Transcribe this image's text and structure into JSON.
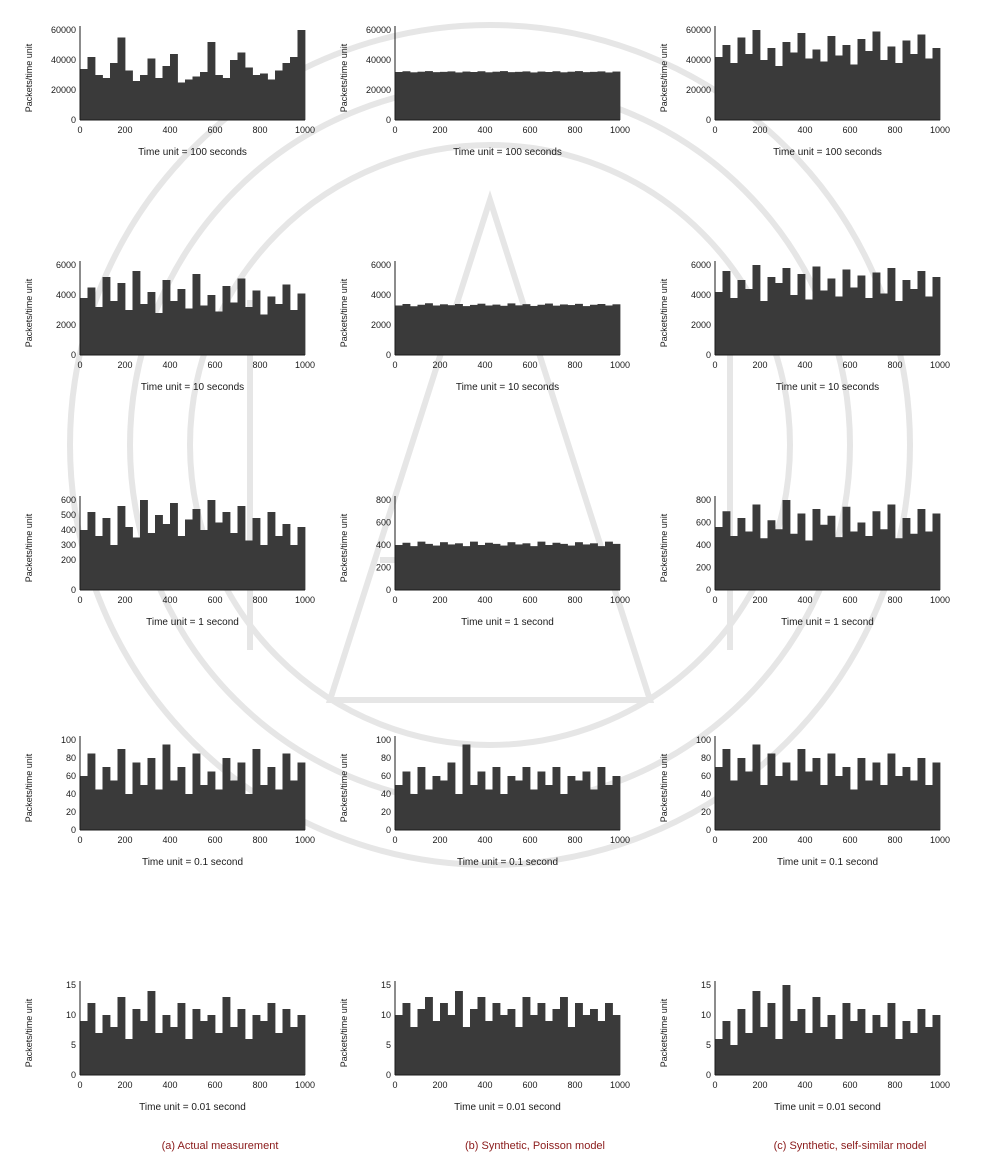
{
  "chart_data": [
    {
      "id": "a1",
      "type": "bar",
      "title": "",
      "xlabel": "Time unit = 100 seconds",
      "ylabel": "Packets/time unit",
      "xlim": [
        0,
        1000
      ],
      "ylim": [
        0,
        60000
      ],
      "xticks": [
        "0",
        "200",
        "400",
        "600",
        "800",
        "1000"
      ],
      "yticks": [
        "0",
        "20000",
        "40000",
        "60000"
      ],
      "values": [
        34000,
        42000,
        30000,
        28000,
        38000,
        55000,
        33000,
        26000,
        30000,
        41000,
        28000,
        36000,
        44000,
        25000,
        27000,
        29000,
        32000,
        52000,
        30000,
        28000,
        40000,
        45000,
        35000,
        30000,
        31000,
        27000,
        33000,
        38000,
        42000,
        60000
      ]
    },
    {
      "id": "b1",
      "type": "bar",
      "title": "",
      "xlabel": "Time unit = 100 seconds",
      "ylabel": "Packets/time unit",
      "xlim": [
        0,
        1000
      ],
      "ylim": [
        0,
        60000
      ],
      "xticks": [
        "0",
        "200",
        "400",
        "600",
        "800",
        "1000"
      ],
      "yticks": [
        "0",
        "20000",
        "40000",
        "60000"
      ],
      "values": [
        32000,
        32500,
        31800,
        32200,
        32600,
        31900,
        32100,
        32400,
        31700,
        32300,
        32000,
        32500,
        31800,
        32200,
        32600,
        31900,
        32100,
        32400,
        31700,
        32300,
        32000,
        32500,
        31800,
        32200,
        32600,
        31900,
        32100,
        32400,
        31700,
        32300
      ]
    },
    {
      "id": "c1",
      "type": "bar",
      "title": "",
      "xlabel": "Time unit = 100 seconds",
      "ylabel": "Packets/time unit",
      "xlim": [
        0,
        1000
      ],
      "ylim": [
        0,
        60000
      ],
      "xticks": [
        "0",
        "200",
        "400",
        "600",
        "800",
        "1000"
      ],
      "yticks": [
        "0",
        "20000",
        "40000",
        "60000"
      ],
      "values": [
        42000,
        50000,
        38000,
        55000,
        44000,
        60000,
        40000,
        48000,
        36000,
        52000,
        45000,
        58000,
        41000,
        47000,
        39000,
        56000,
        43000,
        50000,
        37000,
        54000,
        46000,
        59000,
        40000,
        49000,
        38000,
        53000,
        44000,
        57000,
        41000,
        48000
      ]
    },
    {
      "id": "a2",
      "type": "bar",
      "title": "",
      "xlabel": "Time unit = 10 seconds",
      "ylabel": "Packets/time unit",
      "xlim": [
        0,
        1000
      ],
      "ylim": [
        0,
        6000
      ],
      "xticks": [
        "0",
        "200",
        "400",
        "600",
        "800",
        "1000"
      ],
      "yticks": [
        "0",
        "2000",
        "4000",
        "6000"
      ],
      "values": [
        3800,
        4500,
        3200,
        5200,
        3600,
        4800,
        3000,
        5600,
        3400,
        4200,
        2800,
        5000,
        3600,
        4400,
        3100,
        5400,
        3300,
        4000,
        2900,
        4600,
        3500,
        5100,
        3200,
        4300,
        2700,
        3900,
        3400,
        4700,
        3000,
        4100
      ]
    },
    {
      "id": "b2",
      "type": "bar",
      "title": "",
      "xlabel": "Time unit = 10 seconds",
      "ylabel": "Packets/time unit",
      "xlim": [
        0,
        1000
      ],
      "ylim": [
        0,
        6000
      ],
      "xticks": [
        "0",
        "200",
        "400",
        "600",
        "800",
        "1000"
      ],
      "yticks": [
        "0",
        "2000",
        "4000",
        "6000"
      ],
      "values": [
        3300,
        3400,
        3250,
        3350,
        3450,
        3300,
        3380,
        3320,
        3400,
        3260,
        3340,
        3420,
        3300,
        3360,
        3280,
        3440,
        3310,
        3390,
        3270,
        3350,
        3430,
        3290,
        3370,
        3330,
        3410,
        3260,
        3350,
        3400,
        3300,
        3380
      ]
    },
    {
      "id": "c2",
      "type": "bar",
      "title": "",
      "xlabel": "Time unit = 10 seconds",
      "ylabel": "Packets/time unit",
      "xlim": [
        0,
        1000
      ],
      "ylim": [
        0,
        6000
      ],
      "xticks": [
        "0",
        "200",
        "400",
        "600",
        "800",
        "1000"
      ],
      "yticks": [
        "0",
        "2000",
        "4000",
        "6000"
      ],
      "values": [
        4200,
        5600,
        3800,
        5000,
        4400,
        6000,
        3600,
        5200,
        4800,
        5800,
        4000,
        5400,
        3700,
        5900,
        4300,
        5100,
        3900,
        5700,
        4500,
        5300,
        3800,
        5500,
        4100,
        5800,
        3600,
        5000,
        4400,
        5600,
        3900,
        5200
      ]
    },
    {
      "id": "a3",
      "type": "bar",
      "title": "",
      "xlabel": "Time unit = 1 second",
      "ylabel": "Packets/time unit",
      "xlim": [
        0,
        1000
      ],
      "ylim": [
        0,
        600
      ],
      "xticks": [
        "0",
        "200",
        "400",
        "600",
        "800",
        "1000"
      ],
      "yticks": [
        "0",
        "200",
        "300",
        "400",
        "500",
        "600"
      ],
      "values": [
        400,
        520,
        360,
        480,
        300,
        560,
        420,
        350,
        600,
        380,
        500,
        440,
        580,
        360,
        470,
        540,
        400,
        600,
        450,
        520,
        380,
        560,
        330,
        480,
        300,
        520,
        360,
        440,
        300,
        420
      ]
    },
    {
      "id": "b3",
      "type": "bar",
      "title": "",
      "xlabel": "Time unit = 1 second",
      "ylabel": "Packets/time unit",
      "xlim": [
        0,
        1000
      ],
      "ylim": [
        0,
        800
      ],
      "xticks": [
        "0",
        "200",
        "400",
        "600",
        "800",
        "1000"
      ],
      "yticks": [
        "0",
        "200",
        "400",
        "600",
        "800"
      ],
      "values": [
        400,
        420,
        390,
        430,
        410,
        395,
        425,
        405,
        415,
        390,
        430,
        400,
        420,
        410,
        395,
        425,
        405,
        415,
        390,
        430,
        400,
        420,
        410,
        395,
        425,
        405,
        415,
        390,
        430,
        410
      ]
    },
    {
      "id": "c3",
      "type": "bar",
      "title": "",
      "xlabel": "Time unit = 1 second",
      "ylabel": "Packets/time unit",
      "xlim": [
        0,
        1000
      ],
      "ylim": [
        0,
        800
      ],
      "xticks": [
        "0",
        "200",
        "400",
        "600",
        "800",
        "1000"
      ],
      "yticks": [
        "0",
        "200",
        "400",
        "600",
        "800"
      ],
      "values": [
        560,
        700,
        480,
        640,
        520,
        760,
        460,
        620,
        540,
        800,
        500,
        680,
        440,
        720,
        580,
        660,
        470,
        740,
        520,
        600,
        480,
        700,
        540,
        760,
        460,
        640,
        500,
        720,
        520,
        680
      ]
    },
    {
      "id": "a4",
      "type": "bar",
      "title": "",
      "xlabel": "Time unit = 0.1 second",
      "ylabel": "Packets/time unit",
      "xlim": [
        0,
        1000
      ],
      "ylim": [
        0,
        100
      ],
      "xticks": [
        "0",
        "200",
        "400",
        "600",
        "800",
        "1000"
      ],
      "yticks": [
        "0",
        "20",
        "40",
        "60",
        "80",
        "100"
      ],
      "values": [
        60,
        85,
        45,
        70,
        55,
        90,
        40,
        75,
        50,
        80,
        45,
        95,
        55,
        70,
        40,
        85,
        50,
        65,
        45,
        80,
        55,
        75,
        40,
        90,
        50,
        70,
        45,
        85,
        55,
        75
      ]
    },
    {
      "id": "b4",
      "type": "bar",
      "title": "",
      "xlabel": "Time unit = 0.1 second",
      "ylabel": "Packets/time unit",
      "xlim": [
        0,
        1000
      ],
      "ylim": [
        0,
        100
      ],
      "xticks": [
        "0",
        "200",
        "400",
        "600",
        "800",
        "1000"
      ],
      "yticks": [
        "0",
        "20",
        "40",
        "60",
        "80",
        "100"
      ],
      "values": [
        50,
        65,
        40,
        70,
        45,
        60,
        55,
        75,
        40,
        95,
        50,
        65,
        45,
        70,
        40,
        60,
        55,
        70,
        45,
        65,
        50,
        70,
        40,
        60,
        55,
        65,
        45,
        70,
        50,
        60
      ]
    },
    {
      "id": "c4",
      "type": "bar",
      "title": "",
      "xlabel": "Time unit = 0.1 second",
      "ylabel": "Packets/time unit",
      "xlim": [
        0,
        1000
      ],
      "ylim": [
        0,
        100
      ],
      "xticks": [
        "0",
        "200",
        "400",
        "600",
        "800",
        "1000"
      ],
      "yticks": [
        "0",
        "20",
        "40",
        "60",
        "80",
        "100"
      ],
      "values": [
        70,
        90,
        55,
        80,
        65,
        95,
        50,
        85,
        60,
        75,
        55,
        90,
        65,
        80,
        50,
        85,
        60,
        70,
        45,
        80,
        55,
        75,
        50,
        85,
        60,
        70,
        55,
        80,
        50,
        75
      ]
    },
    {
      "id": "a5",
      "type": "bar",
      "title": "",
      "xlabel": "Time unit = 0.01 second",
      "ylabel": "Packets/time unit",
      "xlim": [
        0,
        1000
      ],
      "ylim": [
        0,
        15
      ],
      "xticks": [
        "0",
        "200",
        "400",
        "600",
        "800",
        "1000"
      ],
      "yticks": [
        "0",
        "5",
        "10",
        "15"
      ],
      "values": [
        9,
        12,
        7,
        10,
        8,
        13,
        6,
        11,
        9,
        14,
        7,
        10,
        8,
        12,
        6,
        11,
        9,
        10,
        7,
        13,
        8,
        11,
        6,
        10,
        9,
        12,
        7,
        11,
        8,
        10
      ]
    },
    {
      "id": "b5",
      "type": "bar",
      "title": "",
      "xlabel": "Time unit = 0.01 second",
      "ylabel": "Packets/time unit",
      "xlim": [
        0,
        1000
      ],
      "ylim": [
        0,
        15
      ],
      "xticks": [
        "0",
        "200",
        "400",
        "600",
        "800",
        "1000"
      ],
      "yticks": [
        "0",
        "5",
        "10",
        "15"
      ],
      "values": [
        10,
        12,
        8,
        11,
        13,
        9,
        12,
        10,
        14,
        8,
        11,
        13,
        9,
        12,
        10,
        11,
        8,
        13,
        10,
        12,
        9,
        11,
        13,
        8,
        12,
        10,
        11,
        9,
        12,
        10
      ]
    },
    {
      "id": "c5",
      "type": "bar",
      "title": "",
      "xlabel": "Time unit = 0.01 second",
      "ylabel": "Packets/time unit",
      "xlim": [
        0,
        1000
      ],
      "ylim": [
        0,
        15
      ],
      "xticks": [
        "0",
        "200",
        "400",
        "600",
        "800",
        "1000"
      ],
      "yticks": [
        "0",
        "5",
        "10",
        "15"
      ],
      "values": [
        6,
        9,
        5,
        11,
        7,
        14,
        8,
        12,
        6,
        15,
        9,
        11,
        7,
        13,
        8,
        10,
        6,
        12,
        9,
        11,
        7,
        10,
        8,
        12,
        6,
        9,
        7,
        11,
        8,
        10
      ]
    }
  ],
  "captions": {
    "a": "(a) Actual measurement",
    "b": "(b) Synthetic, Poisson model",
    "c": "(c) Synthetic, self-similar model"
  },
  "colors": {
    "bar": "#3a3a3a",
    "axis": "#1a1a1a",
    "caption": "#8a1a1a",
    "watermark": "#e6e6e6"
  }
}
